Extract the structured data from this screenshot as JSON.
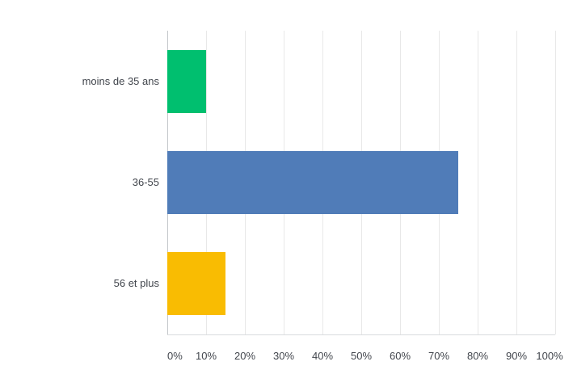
{
  "chart_data": {
    "type": "bar",
    "orientation": "horizontal",
    "title": "",
    "xlabel": "",
    "ylabel": "",
    "categories": [
      "moins de 35 ans",
      "36-55",
      "56 et plus"
    ],
    "values": [
      10,
      75,
      15
    ],
    "value_unit": "%",
    "xlim": [
      0,
      100
    ],
    "x_tick_labels": [
      "0%",
      "10%",
      "20%",
      "30%",
      "40%",
      "50%",
      "60%",
      "70%",
      "80%",
      "90%",
      "100%"
    ],
    "bar_colors": [
      "#00bf6f",
      "#507cb8",
      "#f9bc02"
    ],
    "grid": "vertical",
    "legend": "none",
    "background_color": "#ffffff",
    "gridline_color": "#e8e8e8",
    "axis_line_color": "#c4c7ca",
    "baseline_color": "#d9dcde",
    "text_color": "#42464d"
  }
}
